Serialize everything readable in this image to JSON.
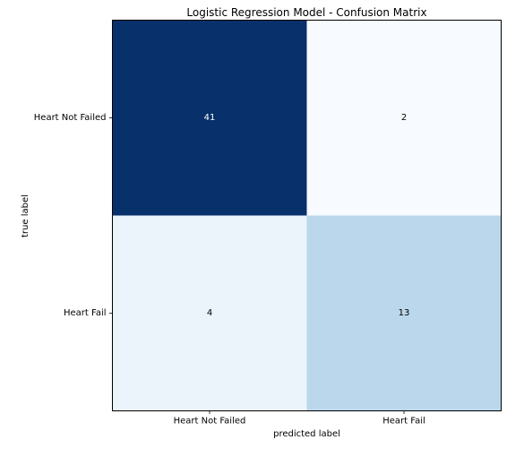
{
  "chart_data": {
    "type": "heatmap",
    "title": "Logistic Regression Model - Confusion Matrix",
    "xlabel": "predicted label",
    "ylabel": "true label",
    "x_categories": [
      "Heart Not Failed",
      "Heart Fail"
    ],
    "y_categories": [
      "Heart Not Failed",
      "Heart Fail"
    ],
    "matrix": [
      [
        41,
        2
      ],
      [
        4,
        13
      ]
    ],
    "colormap": "Blues",
    "cell_colors": [
      [
        "#08306b",
        "#f7fbff"
      ],
      [
        "#ebf3fb",
        "#bbd7eb"
      ]
    ],
    "text_colors": [
      [
        "#ffffff",
        "#000000"
      ],
      [
        "#000000",
        "#000000"
      ]
    ],
    "grid": false,
    "legend": "none"
  }
}
